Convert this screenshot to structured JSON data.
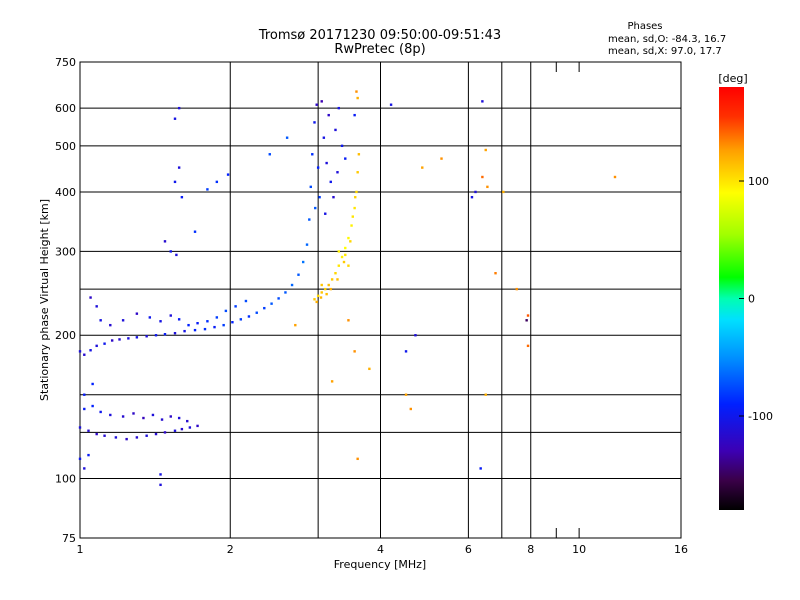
{
  "header": {
    "title_line1": "Tromsø 20171230 09:50:00-09:51:43",
    "title_line2": "RwPretec (8p)"
  },
  "phases": {
    "heading": "Phases",
    "line_o": "mean, sd,O: -84.3, 16.7",
    "line_x": "mean, sd,X:  97.0, 17.7"
  },
  "colors": {
    "background": "#ffffff",
    "grid": "#000000"
  },
  "chart_data": {
    "type": "scatter",
    "xlabel": "Frequency [MHz]",
    "ylabel": "Stationary phase Virtual Height [km]",
    "x_scale": "log",
    "y_scale": "log",
    "xlim": [
      1,
      16
    ],
    "ylim": [
      75,
      750
    ],
    "x_ticks": [
      {
        "value": 1,
        "label": "1",
        "major": true
      },
      {
        "value": 2,
        "label": "2",
        "major": true
      },
      {
        "value": 3,
        "label": "",
        "major": true
      },
      {
        "value": 4,
        "label": "4",
        "major": true
      },
      {
        "value": 6,
        "label": "6",
        "major": true
      },
      {
        "value": 7,
        "label": "",
        "major": true
      },
      {
        "value": 8,
        "label": "8",
        "major": true
      },
      {
        "value": 9,
        "label": "",
        "major": false
      },
      {
        "value": 10,
        "label": "10",
        "major": false
      },
      {
        "value": 16,
        "label": "16",
        "major": false
      }
    ],
    "y_ticks": [
      {
        "value": 75,
        "label": "75"
      },
      {
        "value": 100,
        "label": "100"
      },
      {
        "value": 125,
        "label": ""
      },
      {
        "value": 150,
        "label": ""
      },
      {
        "value": 200,
        "label": "200"
      },
      {
        "value": 250,
        "label": ""
      },
      {
        "value": 300,
        "label": "300"
      },
      {
        "value": 400,
        "label": "400"
      },
      {
        "value": 500,
        "label": "500"
      },
      {
        "value": 600,
        "label": "600"
      },
      {
        "value": 750,
        "label": "750"
      }
    ],
    "grid": true,
    "colorbar": {
      "label": "[deg]",
      "range": [
        -180,
        180
      ],
      "ticks": [
        {
          "value": 100,
          "label": "100"
        },
        {
          "value": 0,
          "label": "0"
        },
        {
          "value": -100,
          "label": "-100"
        }
      ]
    },
    "series": [
      {
        "mode": "O",
        "points": [
          [
            1.0,
            185,
            -110
          ],
          [
            1.02,
            182,
            -115
          ],
          [
            1.05,
            186,
            -105
          ],
          [
            1.08,
            190,
            -110
          ],
          [
            1.12,
            192,
            -100
          ],
          [
            1.16,
            195,
            -120
          ],
          [
            1.2,
            196,
            -115
          ],
          [
            1.25,
            197,
            -110
          ],
          [
            1.3,
            198,
            -105
          ],
          [
            1.36,
            199,
            -110
          ],
          [
            1.42,
            200,
            -100
          ],
          [
            1.48,
            201,
            -95
          ],
          [
            1.55,
            202,
            -110
          ],
          [
            1.62,
            204,
            -105
          ],
          [
            1.7,
            205,
            -90
          ],
          [
            1.78,
            206,
            -85
          ],
          [
            1.86,
            208,
            -95
          ],
          [
            1.94,
            210,
            -80
          ],
          [
            2.02,
            213,
            -90
          ],
          [
            2.1,
            216,
            -80
          ],
          [
            2.18,
            219,
            -85
          ],
          [
            2.26,
            223,
            -75
          ],
          [
            2.34,
            228,
            -80
          ],
          [
            2.42,
            233,
            -70
          ],
          [
            2.5,
            239,
            -75
          ],
          [
            2.58,
            246,
            -70
          ],
          [
            2.66,
            255,
            -65
          ],
          [
            2.74,
            268,
            -70
          ],
          [
            2.8,
            285,
            -60
          ],
          [
            2.85,
            310,
            -65
          ],
          [
            2.88,
            350,
            -70
          ],
          [
            2.9,
            410,
            -75
          ],
          [
            2.92,
            480,
            -85
          ],
          [
            2.95,
            560,
            -100
          ],
          [
            2.98,
            610,
            -120
          ],
          [
            3.05,
            620,
            -130
          ],
          [
            3.15,
            580,
            -120
          ],
          [
            3.25,
            540,
            -110
          ],
          [
            3.35,
            500,
            -100
          ],
          [
            3.4,
            470,
            -95
          ],
          [
            3.08,
            520,
            -105
          ],
          [
            3.12,
            460,
            -110
          ],
          [
            3.18,
            420,
            -100
          ],
          [
            3.22,
            390,
            -115
          ],
          [
            3.28,
            440,
            -110
          ],
          [
            3.3,
            600,
            -105
          ],
          [
            3.0,
            450,
            -90
          ],
          [
            3.02,
            390,
            -80
          ],
          [
            2.96,
            370,
            -70
          ],
          [
            3.1,
            360,
            -105
          ],
          [
            1.05,
            240,
            -120
          ],
          [
            1.08,
            230,
            -110
          ],
          [
            1.1,
            215,
            -105
          ],
          [
            1.15,
            210,
            -115
          ],
          [
            1.22,
            215,
            -110
          ],
          [
            1.3,
            222,
            -120
          ],
          [
            1.38,
            218,
            -100
          ],
          [
            1.45,
            214,
            -105
          ],
          [
            1.52,
            220,
            -110
          ],
          [
            1.58,
            216,
            -95
          ],
          [
            1.65,
            210,
            -90
          ],
          [
            1.72,
            212,
            -95
          ],
          [
            1.8,
            214,
            -85
          ],
          [
            1.88,
            218,
            -80
          ],
          [
            1.96,
            225,
            -75
          ],
          [
            2.05,
            230,
            -80
          ],
          [
            2.15,
            236,
            -75
          ],
          [
            1.0,
            128,
            -110
          ],
          [
            1.04,
            126,
            -115
          ],
          [
            1.08,
            124,
            -120
          ],
          [
            1.12,
            123,
            -115
          ],
          [
            1.18,
            122,
            -110
          ],
          [
            1.24,
            121,
            -120
          ],
          [
            1.3,
            122,
            -115
          ],
          [
            1.36,
            123,
            -110
          ],
          [
            1.42,
            124,
            -115
          ],
          [
            1.48,
            125,
            -120
          ],
          [
            1.55,
            126,
            -110
          ],
          [
            1.6,
            127,
            -115
          ],
          [
            1.66,
            128,
            -110
          ],
          [
            1.72,
            129,
            -120
          ],
          [
            1.02,
            140,
            -95
          ],
          [
            1.06,
            142,
            -90
          ],
          [
            1.1,
            138,
            -100
          ],
          [
            1.15,
            136,
            -110
          ],
          [
            1.22,
            135,
            -115
          ],
          [
            1.28,
            137,
            -120
          ],
          [
            1.34,
            134,
            -125
          ],
          [
            1.4,
            136,
            -110
          ],
          [
            1.46,
            133,
            -115
          ],
          [
            1.52,
            135,
            -120
          ],
          [
            1.58,
            134,
            -110
          ],
          [
            1.64,
            132,
            -115
          ],
          [
            1.0,
            110,
            -100
          ],
          [
            1.02,
            105,
            -110
          ],
          [
            1.04,
            112,
            -95
          ],
          [
            1.06,
            158,
            -90
          ],
          [
            1.02,
            150,
            -95
          ],
          [
            1.55,
            420,
            -100
          ],
          [
            1.58,
            450,
            -110
          ],
          [
            1.55,
            570,
            -105
          ],
          [
            1.58,
            600,
            -110
          ],
          [
            1.6,
            390,
            -95
          ],
          [
            1.52,
            300,
            -100
          ],
          [
            1.56,
            295,
            -110
          ],
          [
            1.48,
            315,
            -115
          ],
          [
            1.45,
            97,
            -110
          ],
          [
            1.45,
            102,
            -105
          ],
          [
            1.7,
            330,
            -85
          ],
          [
            1.8,
            405,
            -80
          ],
          [
            1.88,
            420,
            -85
          ],
          [
            1.98,
            435,
            -90
          ],
          [
            2.4,
            480,
            -75
          ],
          [
            2.6,
            520,
            -70
          ],
          [
            3.55,
            580,
            -95
          ],
          [
            4.2,
            610,
            -105
          ],
          [
            6.4,
            620,
            -110
          ],
          [
            6.35,
            105,
            -95
          ],
          [
            6.2,
            400,
            -110
          ],
          [
            6.1,
            390,
            -105
          ],
          [
            4.5,
            185,
            -100
          ],
          [
            4.7,
            200,
            -110
          ]
        ]
      },
      {
        "mode": "X",
        "points": [
          [
            2.95,
            238,
            110
          ],
          [
            3.0,
            242,
            105
          ],
          [
            3.05,
            246,
            112
          ],
          [
            3.1,
            250,
            108
          ],
          [
            3.15,
            255,
            115
          ],
          [
            3.2,
            262,
            110
          ],
          [
            3.25,
            270,
            105
          ],
          [
            3.3,
            280,
            100
          ],
          [
            3.35,
            292,
            95
          ],
          [
            3.4,
            305,
            90
          ],
          [
            3.45,
            320,
            92
          ],
          [
            3.5,
            340,
            95
          ],
          [
            3.55,
            370,
            100
          ],
          [
            3.58,
            400,
            105
          ],
          [
            3.6,
            440,
            110
          ],
          [
            3.62,
            480,
            115
          ],
          [
            2.98,
            235,
            120
          ],
          [
            3.04,
            240,
            118
          ],
          [
            3.12,
            244,
            115
          ],
          [
            3.18,
            250,
            120
          ],
          [
            3.28,
            262,
            115
          ],
          [
            3.38,
            285,
            110
          ],
          [
            3.48,
            315,
            105
          ],
          [
            3.52,
            355,
            100
          ],
          [
            3.56,
            390,
            108
          ],
          [
            3.4,
            295,
            100
          ],
          [
            3.3,
            300,
            95
          ],
          [
            3.45,
            280,
            105
          ],
          [
            3.05,
            255,
            112
          ],
          [
            3.58,
            650,
            130
          ],
          [
            3.6,
            630,
            120
          ],
          [
            4.85,
            450,
            125
          ],
          [
            5.3,
            470,
            130
          ],
          [
            6.5,
            490,
            125
          ],
          [
            6.55,
            410,
            130
          ],
          [
            7.05,
            400,
            120
          ],
          [
            6.8,
            270,
            135
          ],
          [
            7.5,
            250,
            130
          ],
          [
            7.9,
            220,
            145
          ],
          [
            7.9,
            190,
            140
          ],
          [
            4.5,
            150,
            125
          ],
          [
            4.6,
            140,
            130
          ],
          [
            6.5,
            150,
            120
          ],
          [
            3.2,
            160,
            125
          ],
          [
            3.6,
            110,
            130
          ],
          [
            2.7,
            210,
            125
          ],
          [
            3.45,
            215,
            130
          ],
          [
            11.8,
            430,
            130
          ],
          [
            6.4,
            430,
            140
          ],
          [
            7.85,
            215,
            -150
          ],
          [
            3.55,
            185,
            130
          ],
          [
            3.8,
            170,
            120
          ]
        ]
      }
    ]
  }
}
